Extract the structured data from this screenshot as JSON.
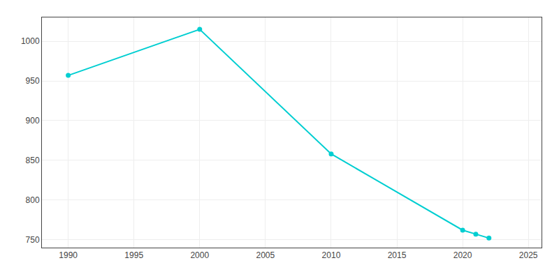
{
  "chart_data": {
    "type": "line",
    "x": [
      1990,
      2000,
      2010,
      2020,
      2021,
      2022
    ],
    "values": [
      957,
      1015,
      858,
      762,
      757,
      752
    ],
    "color": "#00CED1",
    "marker": "circle",
    "xlim": [
      1988,
      2026
    ],
    "ylim": [
      740,
      1030
    ],
    "xticks": [
      1990,
      1995,
      2000,
      2005,
      2010,
      2015,
      2020,
      2025
    ],
    "yticks": [
      750,
      800,
      850,
      900,
      950,
      1000
    ],
    "grid": true
  }
}
